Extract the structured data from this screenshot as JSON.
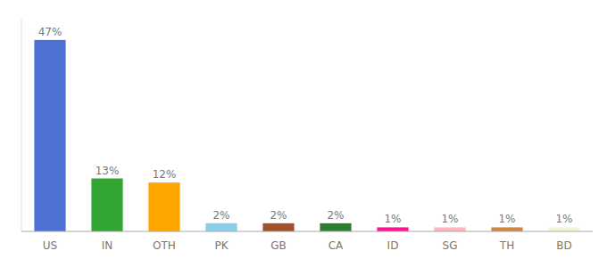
{
  "chart_data": {
    "type": "bar",
    "categories": [
      "US",
      "IN",
      "OTH",
      "PK",
      "GB",
      "CA",
      "ID",
      "SG",
      "TH",
      "BD"
    ],
    "values": [
      47,
      13,
      12,
      2,
      2,
      2,
      1,
      1,
      1,
      1
    ],
    "value_labels": [
      "47%",
      "13%",
      "12%",
      "2%",
      "2%",
      "2%",
      "1%",
      "1%",
      "1%",
      "1%"
    ],
    "colors": [
      "#4d72d4",
      "#33A532",
      "#FFA500",
      "#87CEEB",
      "#A0522D",
      "#2E7D32",
      "#FF1493",
      "#FFB6C1",
      "#CD853F",
      "#F5F5DC"
    ],
    "ylim": [
      0,
      52
    ],
    "data_labels": true,
    "tick_labels": "x"
  }
}
